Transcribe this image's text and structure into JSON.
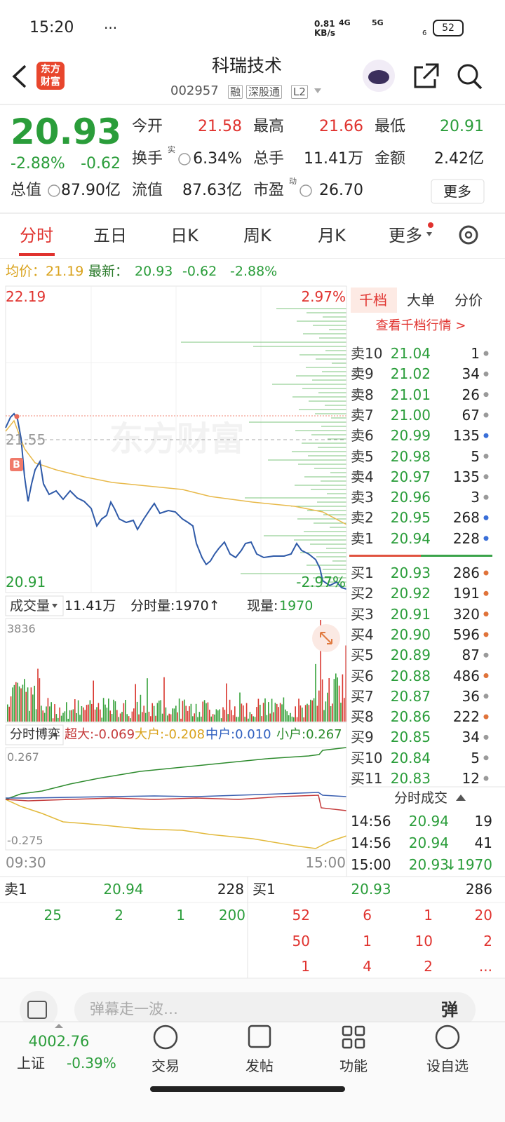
{
  "status": {
    "time": "15:20",
    "more": "···",
    "speed": "0.81",
    "speed_unit": "KB/s",
    "net1": "4G",
    "net2": "5G",
    "wifi_badge": "6",
    "battery": "52"
  },
  "header": {
    "logo": [
      "东方",
      "财富"
    ],
    "title": "科瑞技术",
    "code": "002957",
    "tags": [
      "融",
      "深股通",
      "L2"
    ]
  },
  "quote": {
    "price": "20.93",
    "change_pct": "-2.88%",
    "change": "-0.62",
    "stats": [
      {
        "label": "今开",
        "value": "21.58"
      },
      {
        "label": "最高",
        "value": "21.66"
      },
      {
        "label": "最低",
        "value": "20.91"
      },
      {
        "label": "换手",
        "sup": "实",
        "value": "6.34%"
      },
      {
        "label": "总手",
        "value": "11.41万"
      },
      {
        "label": "金额",
        "value": "2.42亿"
      },
      {
        "label": "总值",
        "value": "87.90亿"
      },
      {
        "label": "流值",
        "value": "87.63亿"
      },
      {
        "label": "市盈",
        "sup": "动",
        "value": "26.70"
      }
    ],
    "more": "更多"
  },
  "tabs": [
    "分时",
    "五日",
    "日K",
    "周K",
    "月K",
    "更多"
  ],
  "chart": {
    "avg": "均价：21.19",
    "latest_label": "最新：",
    "latest": "20.93",
    "change": "-0.62",
    "pct": "-2.88%",
    "high": "22.19",
    "high_pct": "2.97%",
    "prev_close": "21.55",
    "low": "20.91",
    "low_pct": "-2.97%",
    "watermark": "东方财富",
    "marker": "B"
  },
  "volume": {
    "label": "成交量",
    "total": "11.41万",
    "minute": "分时量:1970↑",
    "current_label": "现量:",
    "current": "1970",
    "max": "3836"
  },
  "flow": {
    "label": "分时博弈",
    "super": "超大:-0.069",
    "large": "大户:-0.208",
    "medium": "中户:0.010",
    "small": "小户:0.267",
    "max": "0.267",
    "min": "-0.275",
    "start": "09:30",
    "end": "15:00"
  },
  "book": {
    "tabs": [
      "千档",
      "大单",
      "分价"
    ],
    "link": "查看千档行情 >",
    "asks": [
      {
        "label": "卖10",
        "price": "21.04",
        "qty": "1",
        "dot": "#9a9a9a"
      },
      {
        "label": "卖9",
        "price": "21.02",
        "qty": "34",
        "dot": "#9a9a9a"
      },
      {
        "label": "卖8",
        "price": "21.01",
        "qty": "26",
        "dot": "#9a9a9a"
      },
      {
        "label": "卖7",
        "price": "21.00",
        "qty": "67",
        "dot": "#9a9a9a"
      },
      {
        "label": "卖6",
        "price": "20.99",
        "qty": "135",
        "dot": "#3a6fd8"
      },
      {
        "label": "卖5",
        "price": "20.98",
        "qty": "5",
        "dot": "#9a9a9a"
      },
      {
        "label": "卖4",
        "price": "20.97",
        "qty": "135",
        "dot": "#9a9a9a"
      },
      {
        "label": "卖3",
        "price": "20.96",
        "qty": "3",
        "dot": "#9a9a9a"
      },
      {
        "label": "卖2",
        "price": "20.95",
        "qty": "268",
        "dot": "#3a6fd8"
      },
      {
        "label": "卖1",
        "price": "20.94",
        "qty": "228",
        "dot": "#3a6fd8"
      }
    ],
    "bids": [
      {
        "label": "买1",
        "price": "20.93",
        "qty": "286",
        "dot": "#e0733a"
      },
      {
        "label": "买2",
        "price": "20.92",
        "qty": "191",
        "dot": "#e0733a"
      },
      {
        "label": "买3",
        "price": "20.91",
        "qty": "320",
        "dot": "#e0733a"
      },
      {
        "label": "买4",
        "price": "20.90",
        "qty": "596",
        "dot": "#e0733a"
      },
      {
        "label": "买5",
        "price": "20.89",
        "qty": "87",
        "dot": "#9a9a9a"
      },
      {
        "label": "买6",
        "price": "20.88",
        "qty": "486",
        "dot": "#e0733a"
      },
      {
        "label": "买7",
        "price": "20.87",
        "qty": "36",
        "dot": "#9a9a9a"
      },
      {
        "label": "买8",
        "price": "20.86",
        "qty": "222",
        "dot": "#e0733a"
      },
      {
        "label": "买9",
        "price": "20.85",
        "qty": "34",
        "dot": "#9a9a9a"
      },
      {
        "label": "买10",
        "price": "20.84",
        "qty": "5",
        "dot": "#9a9a9a"
      },
      {
        "label": "买11",
        "price": "20.83",
        "qty": "12",
        "dot": "#9a9a9a"
      }
    ],
    "trades_title": "分时成交",
    "trades": [
      {
        "time": "14:56",
        "price": "20.94",
        "qty": "19"
      },
      {
        "time": "14:56",
        "price": "20.94",
        "qty": "41"
      },
      {
        "time": "15:00",
        "price": "20.93",
        "qty": "↓1970"
      }
    ]
  },
  "bottom": {
    "sell": {
      "label": "卖1",
      "price": "20.94",
      "qty": "228",
      "rows": [
        [
          "25",
          "2",
          "1",
          "200"
        ]
      ]
    },
    "buy": {
      "label": "买1",
      "price": "20.93",
      "qty": "286",
      "rows": [
        [
          "52",
          "6",
          "1",
          "20"
        ],
        [
          "50",
          "1",
          "10",
          "2"
        ],
        [
          "1",
          "4",
          "2",
          "..."
        ]
      ]
    }
  },
  "input": {
    "placeholder": "弹幕走一波…",
    "button": "弹"
  },
  "nav": {
    "index_value": "4002.76",
    "index_name": "上证",
    "index_change": "-0.39%",
    "items": [
      "交易",
      "发帖",
      "功能",
      "设自选"
    ]
  }
}
